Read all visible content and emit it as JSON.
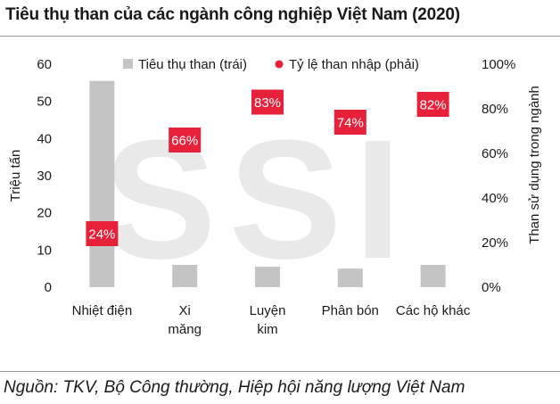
{
  "title": "Tiêu thụ than của các ngành công nghiệp Việt Nam (2020)",
  "source": "Nguồn: TKV, Bộ Công thường, Hiệp hội năng lượng Việt Nam",
  "watermark": "SSI",
  "colors": {
    "bar": "#c4c4c4",
    "label_bg": "#e8213a",
    "label_text": "#ffffff",
    "watermark": "#e9e9e9"
  },
  "chart_data": {
    "type": "bar",
    "categories": [
      [
        "Nhiệt điện"
      ],
      [
        "Xi",
        "măng"
      ],
      [
        "Luyện",
        "kim"
      ],
      [
        "Phân bón"
      ],
      [
        "Các hộ khác"
      ]
    ],
    "series": [
      {
        "name": "Tiêu thụ than (trái)",
        "axis": "left",
        "kind": "bar",
        "values": [
          55.5,
          6,
          5.5,
          5,
          6
        ]
      },
      {
        "name": "Tỷ lệ than nhập (phải)",
        "axis": "right",
        "kind": "label-marker",
        "values": [
          0.24,
          0.66,
          0.83,
          0.74,
          0.82
        ],
        "labels": [
          "24%",
          "66%",
          "83%",
          "74%",
          "82%"
        ]
      }
    ],
    "ylabel": "Triệu tấn",
    "y2label": "Than sử dụng trong ngành",
    "ylim": [
      0,
      60
    ],
    "y2lim": [
      0,
      1
    ],
    "yticks": [
      "0",
      "10",
      "20",
      "30",
      "40",
      "50",
      "60"
    ],
    "y2ticks": [
      "0%",
      "20%",
      "40%",
      "60%",
      "80%",
      "100%"
    ],
    "legend": "top"
  }
}
